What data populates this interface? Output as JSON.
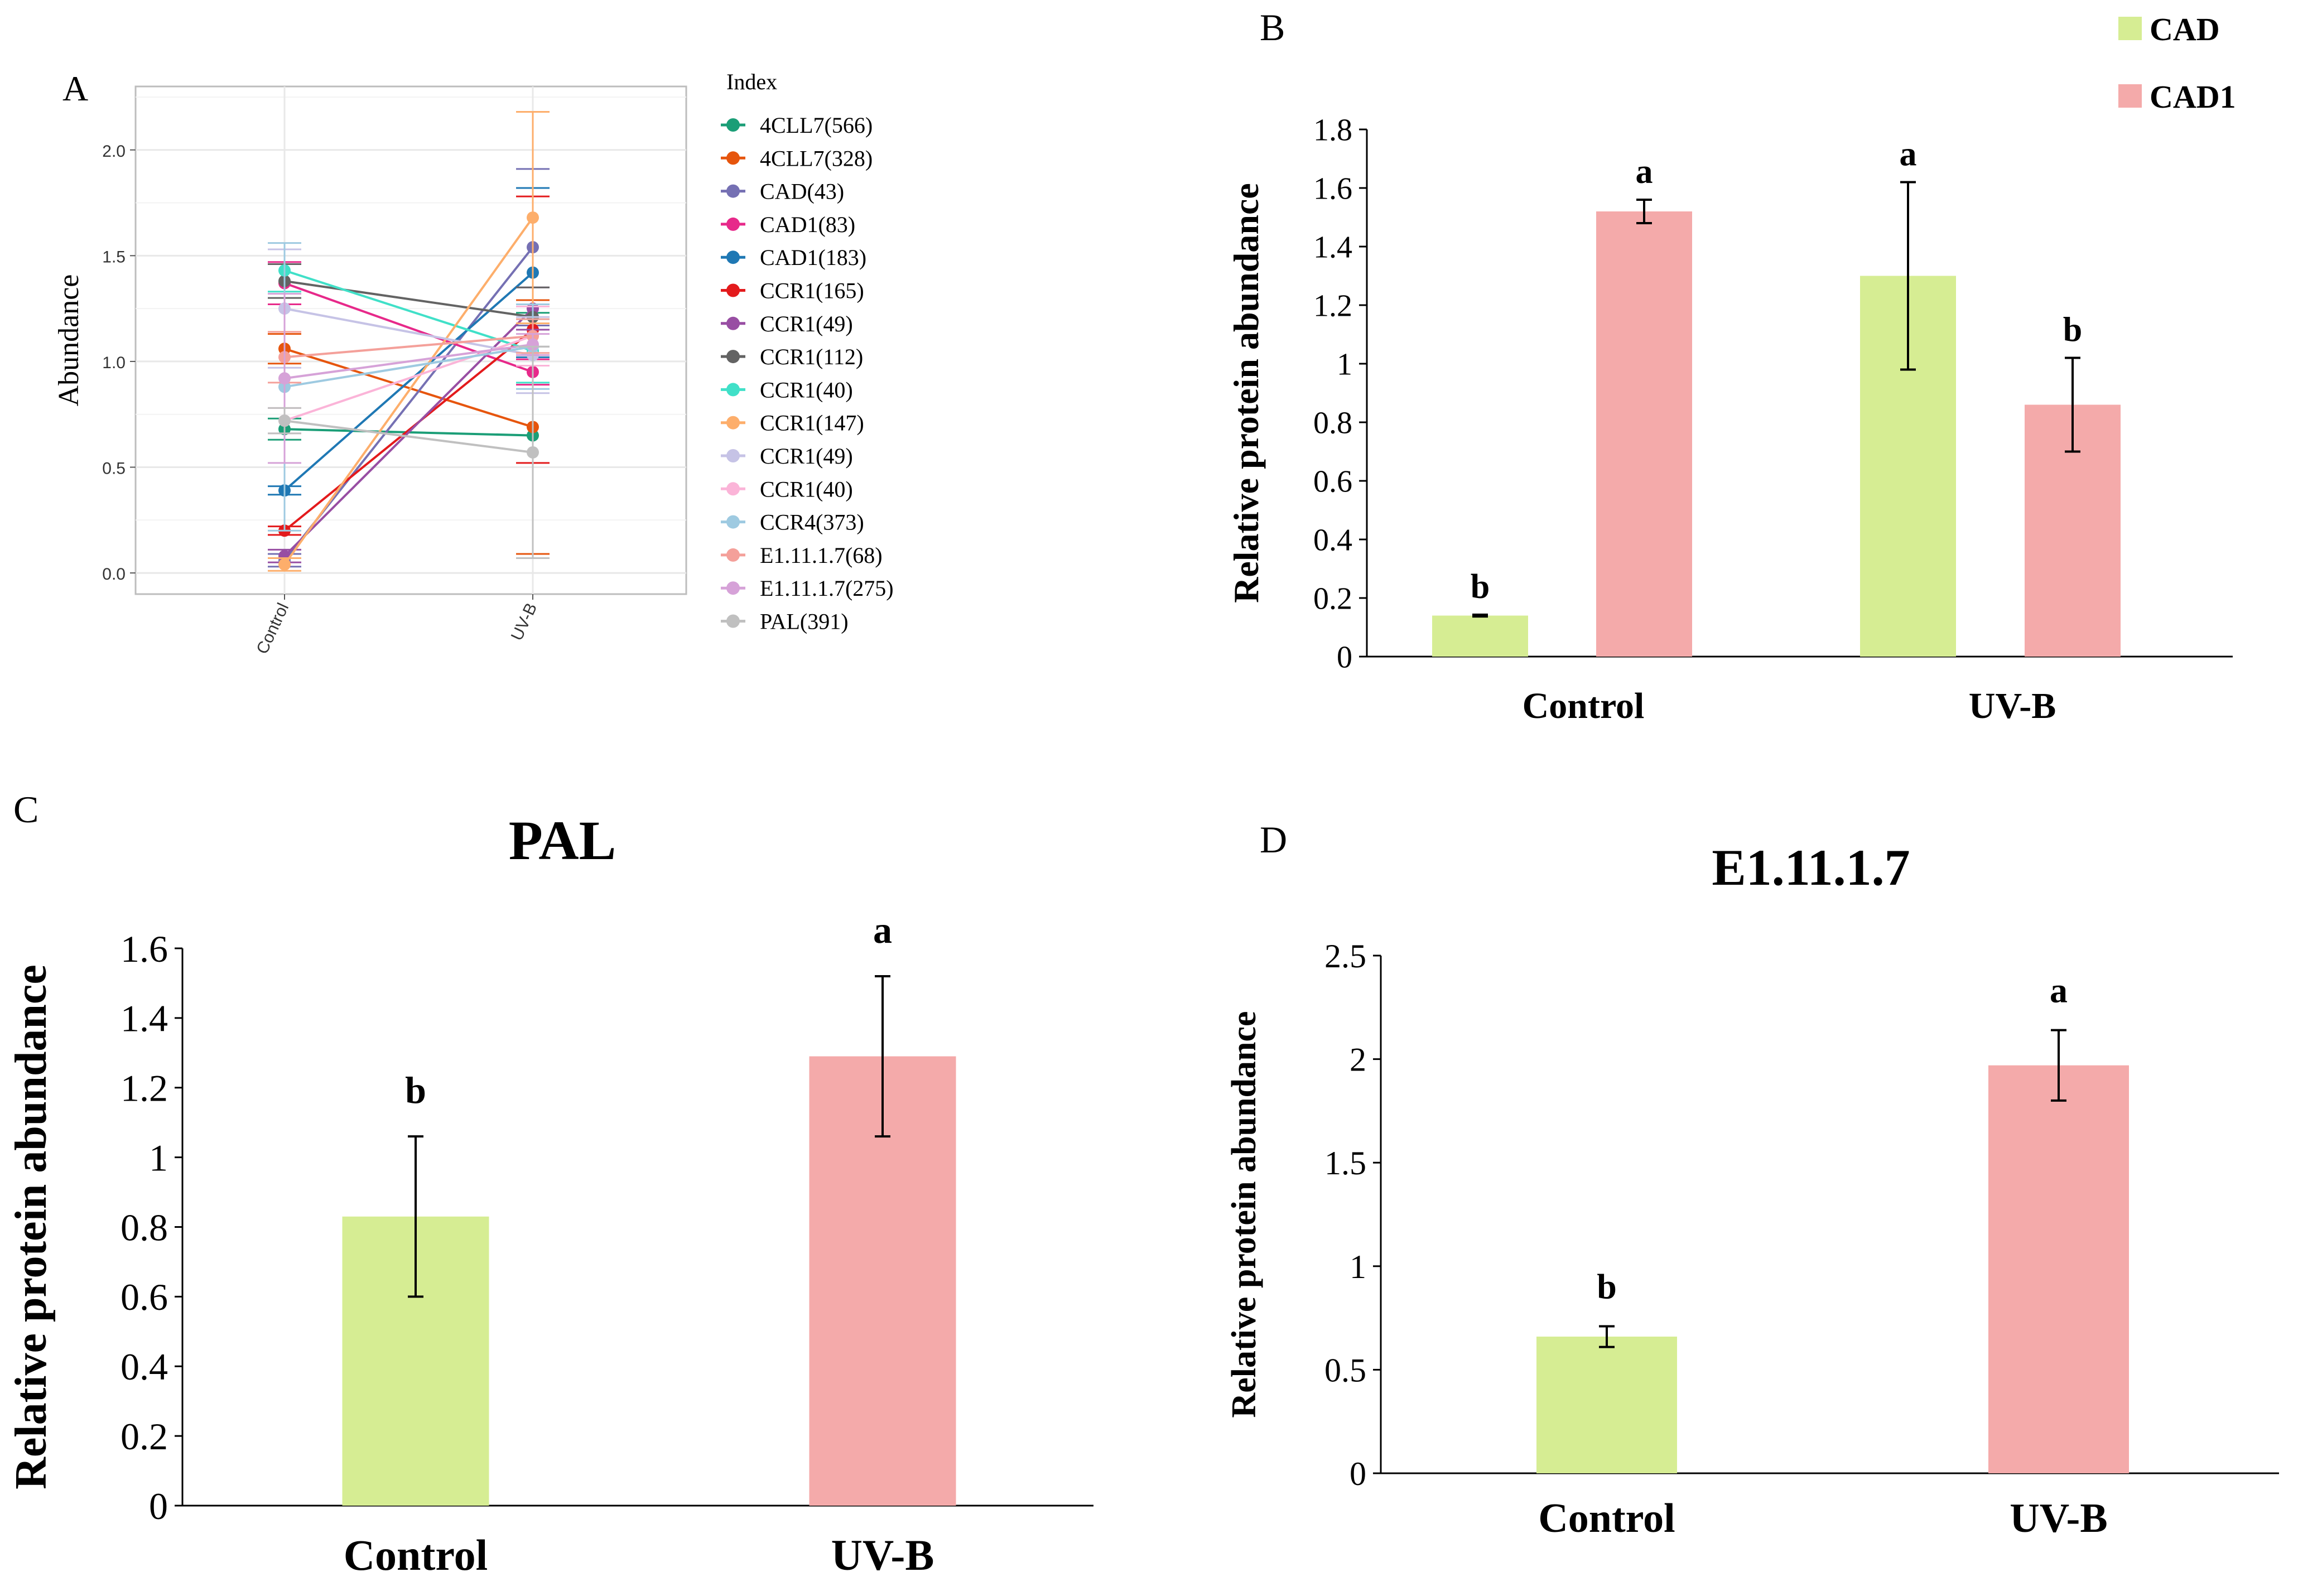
{
  "chart_data": [
    {
      "panel": "A",
      "type": "line",
      "title": "",
      "xlabel": "",
      "ylabel": "Abundance",
      "categories": [
        "Control",
        "UV-B"
      ],
      "ylim": [
        -0.1,
        2.3
      ],
      "yticks": [
        "0.0",
        "0.5",
        "1.0",
        "1.5",
        "2.0"
      ],
      "legend_title": "Index",
      "series": [
        {
          "name": "4CLL7(566)",
          "color": "#1b9e77",
          "values": [
            0.68,
            0.65
          ],
          "errors": [
            0.05,
            0.58
          ]
        },
        {
          "name": "4CLL7(328)",
          "color": "#e6550d",
          "values": [
            1.06,
            0.69
          ],
          "errors": [
            0.07,
            0.6
          ]
        },
        {
          "name": "CAD(43)",
          "color": "#7570b3",
          "values": [
            0.06,
            1.54
          ],
          "errors": [
            0.03,
            0.37
          ]
        },
        {
          "name": "CAD1(83)",
          "color": "#e7298a",
          "values": [
            1.37,
            0.95
          ],
          "errors": [
            0.1,
            0.06
          ]
        },
        {
          "name": "CAD1(183)",
          "color": "#1f78b4",
          "values": [
            0.39,
            1.42
          ],
          "errors": [
            0.02,
            0.4
          ]
        },
        {
          "name": "CCR1(165)",
          "color": "#e31a1c",
          "values": [
            0.2,
            1.15
          ],
          "errors": [
            0.02,
            0.63
          ]
        },
        {
          "name": "CCR1(49)",
          "color": "#984ea3",
          "values": [
            0.08,
            1.25
          ],
          "errors": [
            0.03,
            0.1
          ]
        },
        {
          "name": "CCR1(112)",
          "color": "#636363",
          "values": [
            1.38,
            1.21
          ],
          "errors": [
            0.08,
            0.14
          ]
        },
        {
          "name": "CCR1(40)",
          "color": "#40e0c8",
          "values": [
            1.43,
            1.05
          ],
          "errors": [
            0.1,
            0.15
          ]
        },
        {
          "name": "CCR1(147)",
          "color": "#fdae6b",
          "values": [
            0.04,
            1.68
          ],
          "errors": [
            0.03,
            0.5
          ]
        },
        {
          "name": "CCR1(49)",
          "color": "#c6c3e6",
          "values": [
            1.25,
            1.03
          ],
          "errors": [
            0.28,
            0.18
          ]
        },
        {
          "name": "CCR1(40)",
          "color": "#fbb4d8",
          "values": [
            0.72,
            1.12
          ],
          "errors": [
            0.06,
            0.14
          ]
        },
        {
          "name": "CCR4(373)",
          "color": "#9ecae1",
          "values": [
            0.88,
            1.07
          ],
          "errors": [
            0.68,
            0.2
          ]
        },
        {
          "name": "E1.11.1.7(68)",
          "color": "#f4a09a",
          "values": [
            1.02,
            1.12
          ],
          "errors": [
            0.12,
            0.08
          ]
        },
        {
          "name": "E1.11.1.7(275)",
          "color": "#d6a2d8",
          "values": [
            0.92,
            1.08
          ],
          "errors": [
            0.4,
            0.05
          ]
        },
        {
          "name": "PAL(391)",
          "color": "#c0c0c0",
          "values": [
            0.72,
            0.57
          ],
          "errors": [
            0.06,
            0.5
          ]
        }
      ]
    },
    {
      "panel": "B",
      "type": "bar",
      "title": "",
      "xlabel": "",
      "ylabel": "Relative protein abundance",
      "categories": [
        "Control",
        "UV-B"
      ],
      "ylim": [
        0,
        1.8
      ],
      "yticks": [
        "0",
        "0.2",
        "0.4",
        "0.6",
        "0.8",
        "1",
        "1.2",
        "1.4",
        "1.6",
        "1.8"
      ],
      "series": [
        {
          "name": "CAD",
          "color": "#d6ed93",
          "values": [
            0.14,
            1.3
          ],
          "errors": [
            0.003,
            0.32
          ],
          "letters": [
            "b",
            "a"
          ]
        },
        {
          "name": "CAD1",
          "color": "#f4aaaa",
          "values": [
            1.52,
            0.86
          ],
          "errors": [
            0.04,
            0.16
          ],
          "letters": [
            "a",
            "b"
          ]
        }
      ]
    },
    {
      "panel": "C",
      "type": "bar",
      "title": "PAL",
      "xlabel": "",
      "ylabel": "Relative protein abundance",
      "categories": [
        "Control",
        "UV-B"
      ],
      "ylim": [
        0,
        1.6
      ],
      "yticks": [
        "0",
        "0.2",
        "0.4",
        "0.6",
        "0.8",
        "1",
        "1.2",
        "1.4",
        "1.6"
      ],
      "colors": [
        "#d6ed93",
        "#f4aaaa"
      ],
      "values": [
        0.83,
        1.29
      ],
      "errors": [
        0.23,
        0.23
      ],
      "letters": [
        "b",
        "a"
      ]
    },
    {
      "panel": "D",
      "type": "bar",
      "title": "E1.11.1.7",
      "xlabel": "",
      "ylabel": "Relative protein abundance",
      "categories": [
        "Control",
        "UV-B"
      ],
      "ylim": [
        0,
        2.5
      ],
      "yticks": [
        "0",
        "0.5",
        "1",
        "1.5",
        "2",
        "2.5"
      ],
      "colors": [
        "#d6ed93",
        "#f4aaaa"
      ],
      "values": [
        0.66,
        1.97
      ],
      "errors": [
        0.05,
        0.17
      ],
      "letters": [
        "b",
        "a"
      ]
    }
  ]
}
